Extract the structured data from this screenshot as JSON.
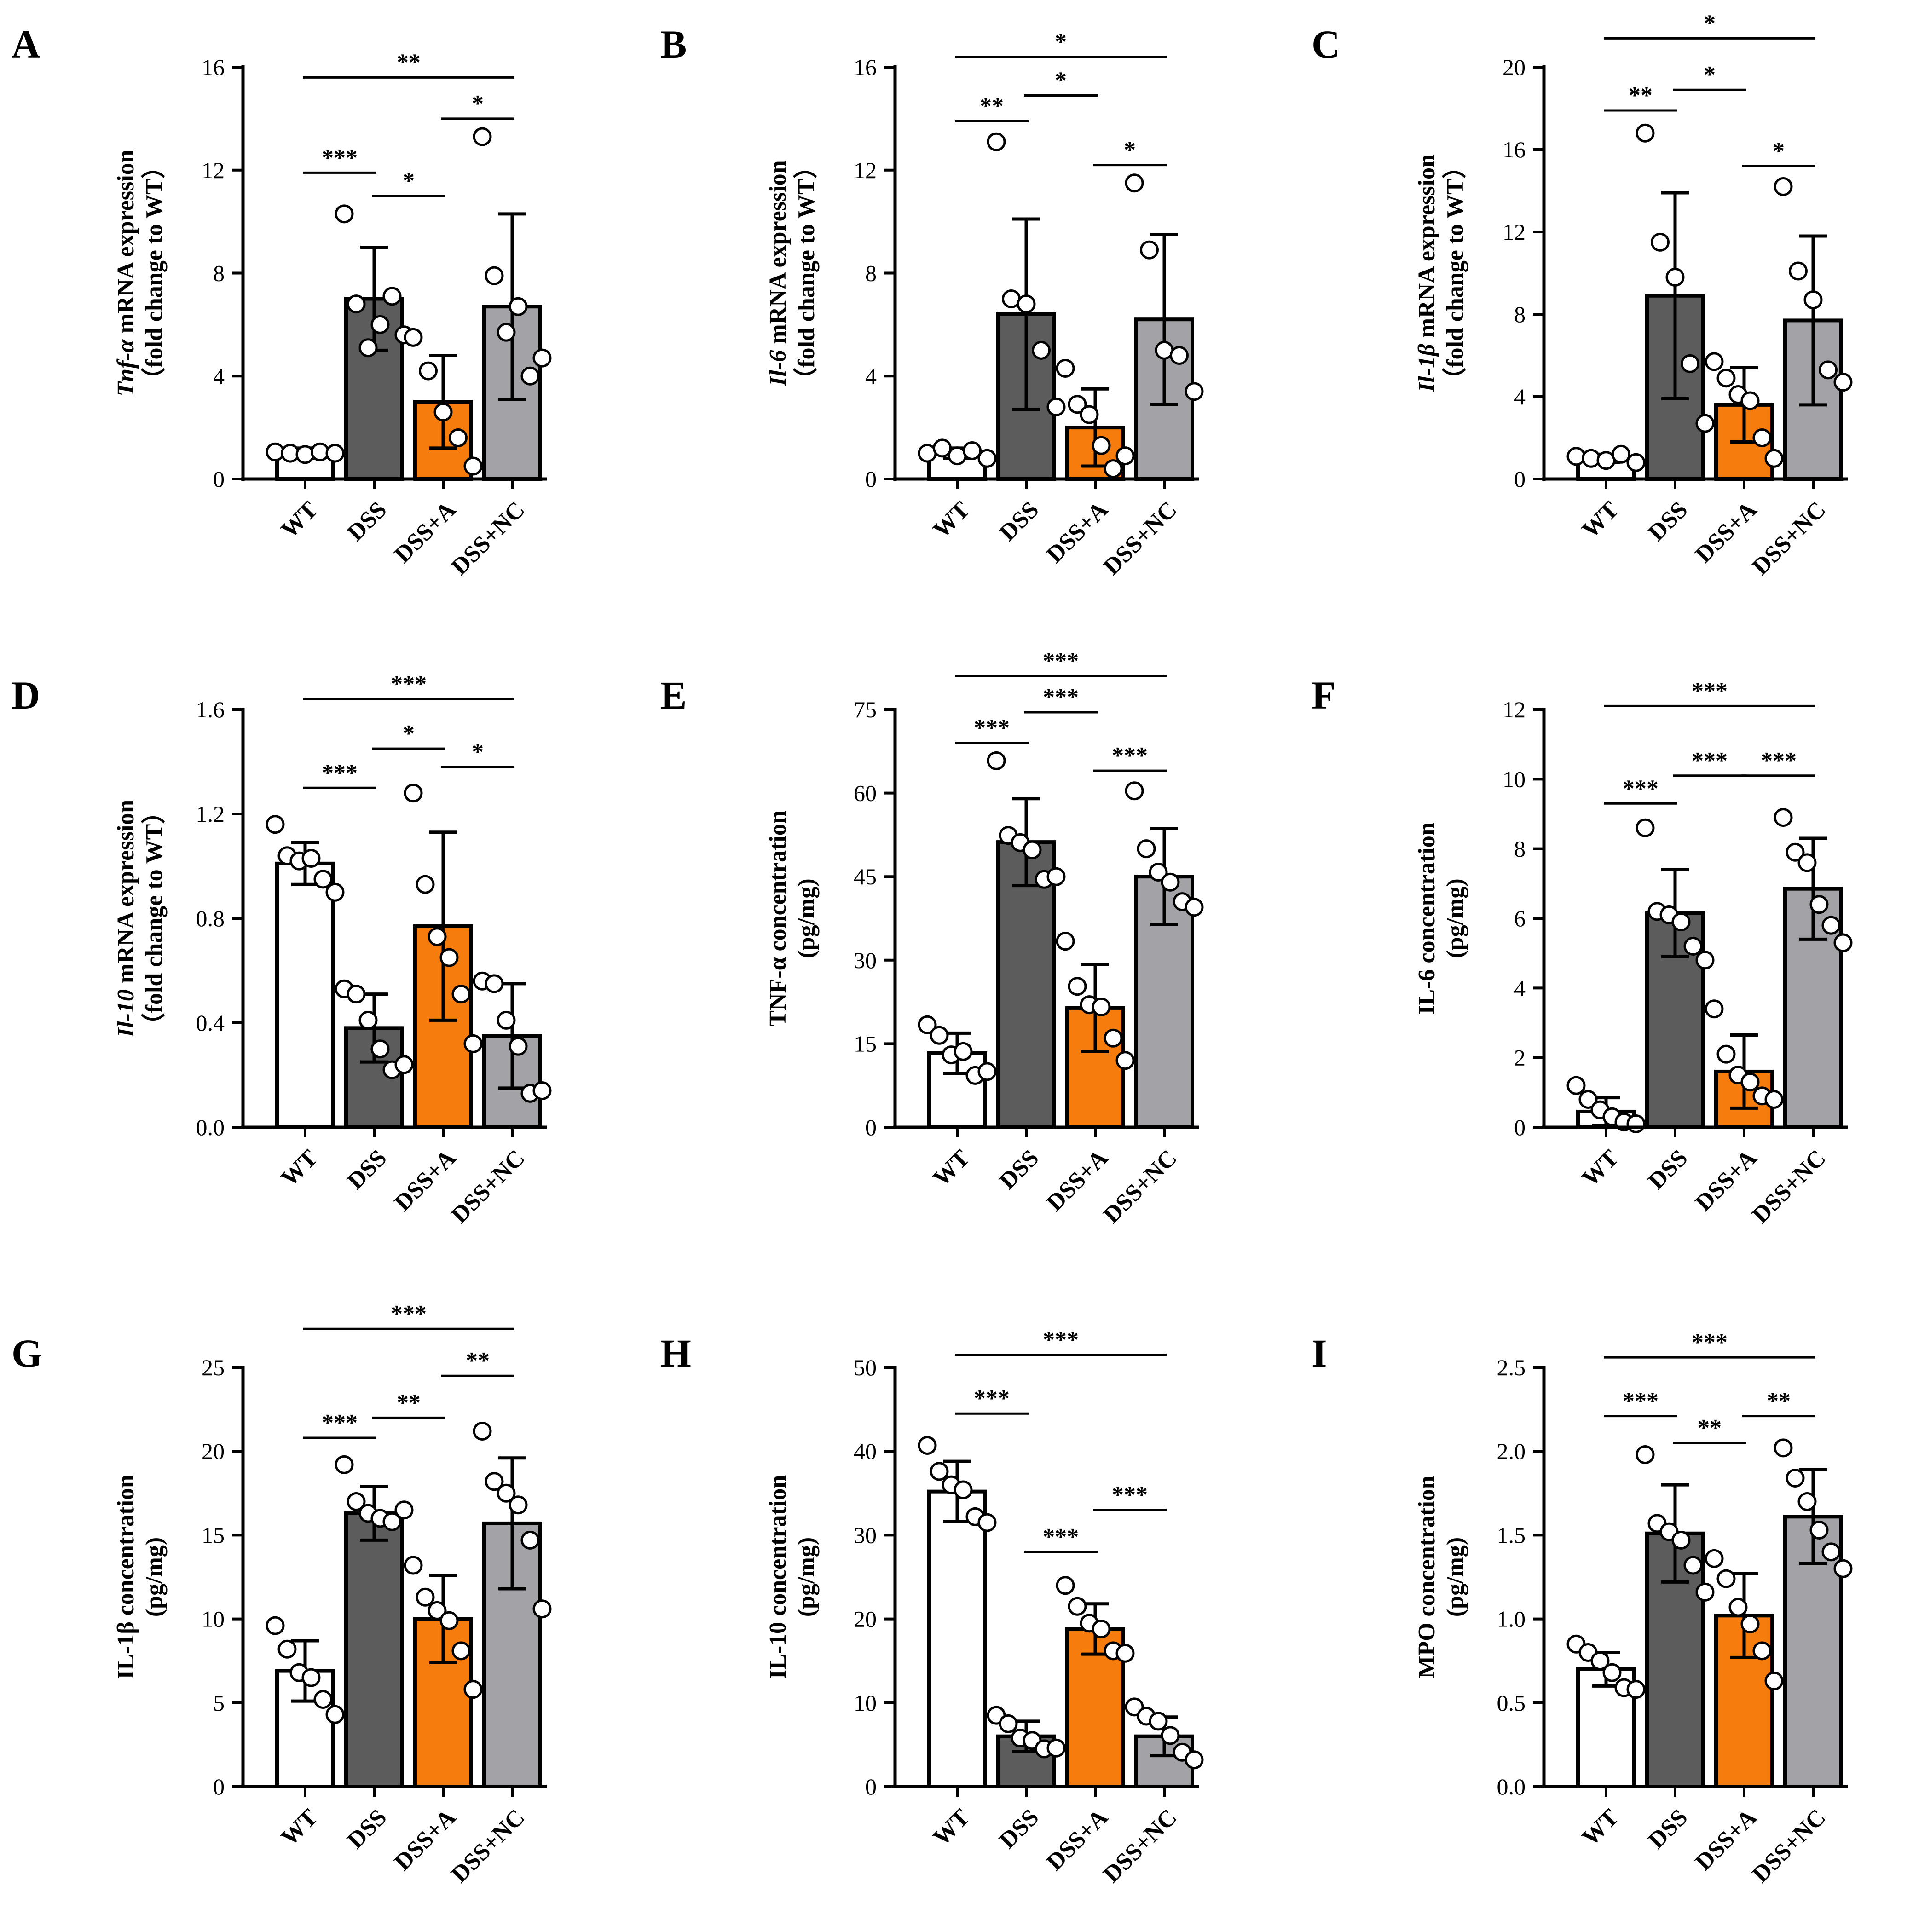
{
  "colors": {
    "WT": "#ffffff",
    "DSS": "#5c5c5c",
    "DSS+A": "#f57c0d",
    "DSS+NC": "#a3a3a7",
    "stroke": "#000000"
  },
  "chart_data": [
    {
      "panel": "A",
      "type": "bar",
      "categories": [
        "WT",
        "DSS",
        "DSS+A",
        "DSS+NC"
      ],
      "ylabel_italic": "Tnf-α",
      "ylabel_rest": " mRNA expression",
      "ylabel_line2": "（fold change to WT）",
      "ylim": [
        0,
        16
      ],
      "yticks": [
        0,
        4,
        8,
        12,
        16
      ],
      "ytick_labels": [
        "0",
        "4",
        "8",
        "12",
        "16"
      ],
      "values": [
        1.0,
        7.0,
        3.0,
        6.7
      ],
      "errors": [
        0.2,
        2.0,
        1.8,
        3.6
      ],
      "points": [
        [
          1.05,
          1.0,
          0.95,
          1.05,
          1.0
        ],
        [
          10.3,
          6.8,
          5.1,
          6.0,
          7.1,
          5.6
        ],
        [
          5.5,
          4.2,
          2.6,
          1.6,
          0.5
        ],
        [
          13.3,
          7.9,
          5.7,
          6.7,
          4.0,
          4.7
        ]
      ],
      "significance": [
        {
          "from": 0,
          "to": 1,
          "label": "***",
          "y": 11.9
        },
        {
          "from": 1,
          "to": 2,
          "label": "*",
          "y": 11.0
        },
        {
          "from": 2,
          "to": 3,
          "label": "*",
          "y": 14.0
        },
        {
          "from": 0,
          "to": 3,
          "label": "**",
          "y": 15.6
        }
      ]
    },
    {
      "panel": "B",
      "type": "bar",
      "categories": [
        "WT",
        "DSS",
        "DSS+A",
        "DSS+NC"
      ],
      "ylabel_italic": "Il-6",
      "ylabel_rest": " mRNA expression",
      "ylabel_line2": "（fold change to WT）",
      "ylim": [
        0,
        16
      ],
      "yticks": [
        0,
        4,
        8,
        12,
        16
      ],
      "ytick_labels": [
        "0",
        "4",
        "8",
        "12",
        "16"
      ],
      "values": [
        1.0,
        6.4,
        2.0,
        6.2
      ],
      "errors": [
        0.2,
        3.7,
        1.5,
        3.3
      ],
      "points": [
        [
          1.0,
          1.2,
          0.9,
          1.1,
          0.8
        ],
        [
          13.1,
          7.0,
          6.8,
          5.0,
          2.8
        ],
        [
          4.3,
          2.9,
          2.5,
          1.3,
          0.4,
          0.9
        ],
        [
          11.5,
          8.9,
          5.0,
          4.8,
          3.4
        ]
      ],
      "significance": [
        {
          "from": 0,
          "to": 1,
          "label": "**",
          "y": 13.9
        },
        {
          "from": 1,
          "to": 2,
          "label": "*",
          "y": 14.9
        },
        {
          "from": 2,
          "to": 3,
          "label": "*",
          "y": 12.2
        },
        {
          "from": 0,
          "to": 3,
          "label": "*",
          "y": 16.4
        }
      ]
    },
    {
      "panel": "C",
      "type": "bar",
      "categories": [
        "WT",
        "DSS",
        "DSS+A",
        "DSS+NC"
      ],
      "ylabel_italic": "Il-1β",
      "ylabel_rest": " mRNA expression",
      "ylabel_line2": "（fold change to WT）",
      "ylim": [
        0,
        20
      ],
      "yticks": [
        0,
        4,
        8,
        12,
        16,
        20
      ],
      "ytick_labels": [
        "0",
        "4",
        "8",
        "12",
        "16",
        "20"
      ],
      "values": [
        1.0,
        8.9,
        3.6,
        7.7
      ],
      "errors": [
        0.2,
        5.0,
        1.8,
        4.1
      ],
      "points": [
        [
          1.1,
          1.0,
          0.9,
          1.2,
          0.8
        ],
        [
          16.8,
          11.5,
          9.8,
          5.6,
          2.7
        ],
        [
          5.7,
          4.9,
          4.1,
          3.8,
          2.0,
          1.0
        ],
        [
          14.2,
          10.1,
          8.7,
          5.3,
          4.7
        ]
      ],
      "significance": [
        {
          "from": 0,
          "to": 1,
          "label": "**",
          "y": 17.9
        },
        {
          "from": 1,
          "to": 2,
          "label": "*",
          "y": 18.9
        },
        {
          "from": 2,
          "to": 3,
          "label": "*",
          "y": 15.2
        },
        {
          "from": 0,
          "to": 3,
          "label": "*",
          "y": 21.4
        }
      ]
    },
    {
      "panel": "D",
      "type": "bar",
      "categories": [
        "WT",
        "DSS",
        "DSS+A",
        "DSS+NC"
      ],
      "ylabel_italic": "Il-10",
      "ylabel_rest": " mRNA expression",
      "ylabel_line2": "（fold change to WT）",
      "ylim": [
        0,
        1.6
      ],
      "yticks": [
        0,
        0.4,
        0.8,
        1.2,
        1.6
      ],
      "ytick_labels": [
        "0.0",
        "0.4",
        "0.8",
        "1.2",
        "1.6"
      ],
      "values": [
        1.01,
        0.38,
        0.77,
        0.35
      ],
      "errors": [
        0.08,
        0.13,
        0.36,
        0.2
      ],
      "points": [
        [
          1.16,
          1.04,
          1.02,
          1.03,
          0.95,
          0.9
        ],
        [
          0.53,
          0.51,
          0.41,
          0.3,
          0.22,
          0.24
        ],
        [
          1.28,
          0.93,
          0.73,
          0.65,
          0.51,
          0.32
        ],
        [
          0.56,
          0.55,
          0.41,
          0.31,
          0.13,
          0.14
        ]
      ],
      "significance": [
        {
          "from": 0,
          "to": 1,
          "label": "***",
          "y": 1.3
        },
        {
          "from": 1,
          "to": 2,
          "label": "*",
          "y": 1.45
        },
        {
          "from": 2,
          "to": 3,
          "label": "*",
          "y": 1.38
        },
        {
          "from": 0,
          "to": 3,
          "label": "***",
          "y": 1.64
        }
      ]
    },
    {
      "panel": "E",
      "type": "bar",
      "categories": [
        "WT",
        "DSS",
        "DSS+A",
        "DSS+NC"
      ],
      "ylabel_italic": "",
      "ylabel_rest": "TNF-α concentration",
      "ylabel_line2": "(pg/mg)",
      "ylim": [
        0,
        75
      ],
      "yticks": [
        0,
        15,
        30,
        45,
        60,
        75
      ],
      "ytick_labels": [
        "0",
        "15",
        "30",
        "45",
        "60",
        "75"
      ],
      "values": [
        13.3,
        51.2,
        21.4,
        45.0
      ],
      "errors": [
        3.6,
        7.8,
        7.8,
        8.6
      ],
      "points": [
        [
          18.4,
          16.5,
          13.0,
          13.6,
          9.3,
          10.0
        ],
        [
          65.8,
          52.4,
          51.1,
          49.8,
          44.5,
          45.0
        ],
        [
          33.4,
          25.3,
          22.0,
          21.6,
          16.0,
          12.0
        ],
        [
          60.4,
          50.0,
          45.8,
          44.0,
          40.5,
          39.5
        ]
      ],
      "significance": [
        {
          "from": 0,
          "to": 1,
          "label": "***",
          "y": 69.0
        },
        {
          "from": 1,
          "to": 2,
          "label": "***",
          "y": 74.5
        },
        {
          "from": 2,
          "to": 3,
          "label": "***",
          "y": 64.0
        },
        {
          "from": 0,
          "to": 3,
          "label": "***",
          "y": 81.0
        }
      ]
    },
    {
      "panel": "F",
      "type": "bar",
      "categories": [
        "WT",
        "DSS",
        "DSS+A",
        "DSS+NC"
      ],
      "ylabel_italic": "",
      "ylabel_rest": "IL-6 concentration",
      "ylabel_line2": "(pg/mg)",
      "ylim": [
        0,
        12
      ],
      "yticks": [
        0,
        2,
        4,
        6,
        8,
        10,
        12
      ],
      "ytick_labels": [
        "0",
        "2",
        "4",
        "6",
        "8",
        "10",
        "12"
      ],
      "values": [
        0.45,
        6.15,
        1.6,
        6.85
      ],
      "errors": [
        0.4,
        1.25,
        1.05,
        1.45
      ],
      "points": [
        [
          1.2,
          0.8,
          0.5,
          0.3,
          0.15,
          0.1
        ],
        [
          8.6,
          6.2,
          6.1,
          5.9,
          5.2,
          4.8
        ],
        [
          3.4,
          2.1,
          1.5,
          1.3,
          0.9,
          0.8
        ],
        [
          8.9,
          7.9,
          7.6,
          6.4,
          5.8,
          5.3
        ]
      ],
      "significance": [
        {
          "from": 0,
          "to": 1,
          "label": "***",
          "y": 9.3
        },
        {
          "from": 1,
          "to": 2,
          "label": "***",
          "y": 10.1
        },
        {
          "from": 2,
          "to": 3,
          "label": "***",
          "y": 10.1
        },
        {
          "from": 0,
          "to": 3,
          "label": "***",
          "y": 12.1
        }
      ]
    },
    {
      "panel": "G",
      "type": "bar",
      "categories": [
        "WT",
        "DSS",
        "DSS+A",
        "DSS+NC"
      ],
      "ylabel_italic": "",
      "ylabel_rest": "IL-1β concentration",
      "ylabel_line2": "(pg/mg)",
      "ylim": [
        0,
        25
      ],
      "yticks": [
        0,
        5,
        10,
        15,
        20,
        25
      ],
      "ytick_labels": [
        "0",
        "5",
        "10",
        "15",
        "20",
        "25"
      ],
      "values": [
        6.9,
        16.3,
        10.0,
        15.7
      ],
      "errors": [
        1.8,
        1.6,
        2.6,
        3.9
      ],
      "points": [
        [
          9.6,
          8.2,
          6.8,
          6.5,
          5.2,
          4.3
        ],
        [
          19.2,
          17.0,
          16.3,
          16.0,
          15.8,
          16.5
        ],
        [
          13.2,
          11.3,
          10.5,
          9.9,
          8.1,
          5.8
        ],
        [
          21.2,
          18.2,
          17.5,
          16.8,
          14.7,
          10.6
        ]
      ],
      "significance": [
        {
          "from": 0,
          "to": 1,
          "label": "***",
          "y": 20.8
        },
        {
          "from": 1,
          "to": 2,
          "label": "**",
          "y": 22.0
        },
        {
          "from": 2,
          "to": 3,
          "label": "**",
          "y": 24.5
        },
        {
          "from": 0,
          "to": 3,
          "label": "***",
          "y": 27.3
        }
      ]
    },
    {
      "panel": "H",
      "type": "bar",
      "categories": [
        "WT",
        "DSS",
        "DSS+A",
        "DSS+NC"
      ],
      "ylabel_italic": "",
      "ylabel_rest": "IL-10 concentration",
      "ylabel_line2": "(pg/mg)",
      "ylim": [
        0,
        50
      ],
      "yticks": [
        0,
        10,
        20,
        30,
        40,
        50
      ],
      "ytick_labels": [
        "0",
        "10",
        "20",
        "30",
        "40",
        "50"
      ],
      "values": [
        35.2,
        6.0,
        18.8,
        6.0
      ],
      "errors": [
        3.6,
        1.8,
        3.0,
        2.3
      ],
      "points": [
        [
          40.7,
          37.6,
          36.0,
          35.4,
          32.2,
          31.5
        ],
        [
          8.5,
          7.5,
          5.8,
          5.5,
          4.5,
          4.6
        ],
        [
          24.0,
          21.5,
          19.5,
          18.8,
          16.2,
          15.9
        ],
        [
          9.5,
          8.4,
          7.8,
          6.1,
          4.1,
          3.2
        ]
      ],
      "significance": [
        {
          "from": 0,
          "to": 1,
          "label": "***",
          "y": 44.5
        },
        {
          "from": 1,
          "to": 2,
          "label": "***",
          "y": 28.0
        },
        {
          "from": 2,
          "to": 3,
          "label": "***",
          "y": 33.0
        },
        {
          "from": 0,
          "to": 3,
          "label": "***",
          "y": 51.5
        }
      ]
    },
    {
      "panel": "I",
      "type": "bar",
      "categories": [
        "WT",
        "DSS",
        "DSS+A",
        "DSS+NC"
      ],
      "ylabel_italic": "",
      "ylabel_rest": "MPO concentration",
      "ylabel_line2": "(pg/mg)",
      "ylim": [
        0,
        2.5
      ],
      "yticks": [
        0,
        0.5,
        1.0,
        1.5,
        2.0,
        2.5
      ],
      "ytick_labels": [
        "0.0",
        "0.5",
        "1.0",
        "1.5",
        "2.0",
        "2.5"
      ],
      "values": [
        0.7,
        1.51,
        1.02,
        1.61
      ],
      "errors": [
        0.1,
        0.29,
        0.25,
        0.28
      ],
      "points": [
        [
          0.85,
          0.8,
          0.75,
          0.68,
          0.59,
          0.58
        ],
        [
          1.98,
          1.57,
          1.52,
          1.47,
          1.32,
          1.16
        ],
        [
          1.36,
          1.24,
          1.07,
          0.97,
          0.81,
          0.63
        ],
        [
          2.02,
          1.84,
          1.7,
          1.53,
          1.4,
          1.3
        ]
      ],
      "significance": [
        {
          "from": 0,
          "to": 1,
          "label": "***",
          "y": 2.21
        },
        {
          "from": 1,
          "to": 2,
          "label": "**",
          "y": 2.05
        },
        {
          "from": 2,
          "to": 3,
          "label": "**",
          "y": 2.21
        },
        {
          "from": 0,
          "to": 3,
          "label": "***",
          "y": 2.56
        }
      ]
    }
  ]
}
